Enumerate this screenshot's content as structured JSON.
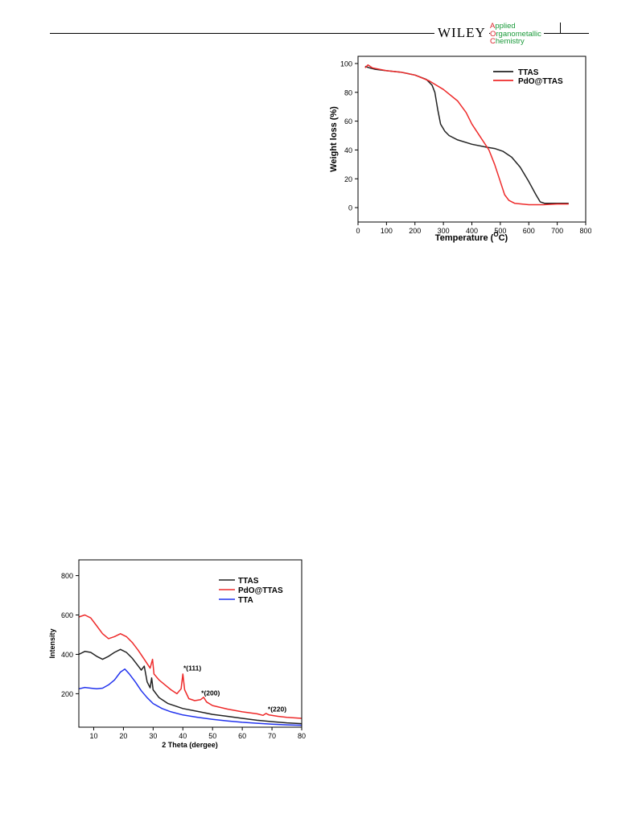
{
  "header": {
    "publisher": "WILEY",
    "journal_lines": [
      {
        "cap": "A",
        "rest": "pplied"
      },
      {
        "cap": "O",
        "rest": "rganometallic"
      },
      {
        "cap": "C",
        "rest": "hemistry"
      }
    ]
  },
  "colors": {
    "black": "#222222",
    "red": "#ee2a2a",
    "blue": "#2233ee",
    "journal_green": "#1a9a3a",
    "journal_red": "#d8232a"
  },
  "chart_data": [
    {
      "type": "line",
      "xlabel": "Temperature (",
      "xlabel_sup": "O",
      "xlabel_tail": "C)",
      "ylabel": "Weight loss (%)",
      "xlim": [
        0,
        800
      ],
      "ylim": [
        -10,
        105
      ],
      "xticks": [
        0,
        100,
        200,
        300,
        400,
        500,
        600,
        700,
        800
      ],
      "yticks": [
        0,
        20,
        40,
        60,
        80,
        100
      ],
      "legend_position": "top-right",
      "series": [
        {
          "name": "TTAS",
          "color": "#222222",
          "points": [
            [
              25,
              98
            ],
            [
              40,
              97
            ],
            [
              60,
              96
            ],
            [
              100,
              95
            ],
            [
              150,
              94
            ],
            [
              200,
              92
            ],
            [
              240,
              89
            ],
            [
              260,
              85
            ],
            [
              270,
              80
            ],
            [
              280,
              68
            ],
            [
              290,
              58
            ],
            [
              305,
              53
            ],
            [
              320,
              50
            ],
            [
              350,
              47
            ],
            [
              400,
              44
            ],
            [
              450,
              42
            ],
            [
              480,
              41
            ],
            [
              510,
              39
            ],
            [
              540,
              35
            ],
            [
              570,
              28
            ],
            [
              600,
              18
            ],
            [
              625,
              9
            ],
            [
              640,
              4
            ],
            [
              655,
              3
            ],
            [
              700,
              3
            ],
            [
              740,
              3
            ]
          ]
        },
        {
          "name": "PdO@TTAS",
          "color": "#ee2a2a",
          "points": [
            [
              25,
              97
            ],
            [
              35,
              99
            ],
            [
              50,
              97
            ],
            [
              100,
              95
            ],
            [
              150,
              94
            ],
            [
              200,
              92
            ],
            [
              250,
              88
            ],
            [
              300,
              82
            ],
            [
              350,
              74
            ],
            [
              380,
              66
            ],
            [
              400,
              58
            ],
            [
              430,
              49
            ],
            [
              460,
              40
            ],
            [
              480,
              30
            ],
            [
              500,
              18
            ],
            [
              515,
              9
            ],
            [
              530,
              5
            ],
            [
              550,
              3
            ],
            [
              600,
              2
            ],
            [
              650,
              2
            ],
            [
              700,
              2.5
            ],
            [
              740,
              2.5
            ]
          ]
        }
      ]
    },
    {
      "type": "line",
      "xlabel": "2 Theta (dergee)",
      "ylabel": "Intensity",
      "xlim": [
        5,
        80
      ],
      "ylim": [
        30,
        880
      ],
      "xticks": [
        10,
        20,
        30,
        40,
        50,
        60,
        70,
        80
      ],
      "yticks": [
        200,
        400,
        600,
        800
      ],
      "legend_position": "top-right",
      "annotations": [
        {
          "text": "*(111)",
          "x": 40.2,
          "y": 318
        },
        {
          "text": "*(200)",
          "x": 46.2,
          "y": 192
        },
        {
          "text": "*(220)",
          "x": 68.6,
          "y": 110
        }
      ],
      "series": [
        {
          "name": "TTAS",
          "color": "#222222",
          "points": [
            [
              5,
              400
            ],
            [
              7,
              415
            ],
            [
              9,
              410
            ],
            [
              11,
              390
            ],
            [
              13,
              375
            ],
            [
              15,
              390
            ],
            [
              17,
              410
            ],
            [
              19,
              425
            ],
            [
              21,
              410
            ],
            [
              23,
              380
            ],
            [
              25,
              340
            ],
            [
              26,
              320
            ],
            [
              27,
              340
            ],
            [
              28,
              260
            ],
            [
              29,
              230
            ],
            [
              29.5,
              280
            ],
            [
              30,
              220
            ],
            [
              32,
              180
            ],
            [
              35,
              150
            ],
            [
              38,
              135
            ],
            [
              40,
              125
            ],
            [
              45,
              110
            ],
            [
              50,
              95
            ],
            [
              55,
              85
            ],
            [
              60,
              75
            ],
            [
              65,
              65
            ],
            [
              70,
              58
            ],
            [
              75,
              52
            ],
            [
              80,
              48
            ]
          ]
        },
        {
          "name": "PdO@TTAS",
          "color": "#ee2a2a",
          "points": [
            [
              5,
              590
            ],
            [
              7,
              600
            ],
            [
              9,
              585
            ],
            [
              11,
              545
            ],
            [
              13,
              505
            ],
            [
              15,
              480
            ],
            [
              17,
              490
            ],
            [
              19,
              505
            ],
            [
              21,
              490
            ],
            [
              23,
              460
            ],
            [
              25,
              420
            ],
            [
              27,
              375
            ],
            [
              29,
              330
            ],
            [
              29.8,
              375
            ],
            [
              30.3,
              300
            ],
            [
              32,
              270
            ],
            [
              34,
              245
            ],
            [
              36,
              220
            ],
            [
              38,
              200
            ],
            [
              39.4,
              225
            ],
            [
              40,
              300
            ],
            [
              40.6,
              220
            ],
            [
              42,
              175
            ],
            [
              44,
              165
            ],
            [
              46,
              170
            ],
            [
              47,
              182
            ],
            [
              48,
              158
            ],
            [
              50,
              140
            ],
            [
              55,
              122
            ],
            [
              60,
              108
            ],
            [
              65,
              98
            ],
            [
              67,
              90
            ],
            [
              68,
              100
            ],
            [
              69,
              92
            ],
            [
              72,
              85
            ],
            [
              75,
              80
            ],
            [
              80,
              75
            ]
          ]
        },
        {
          "name": "TTA",
          "color": "#2233ee",
          "points": [
            [
              5,
              225
            ],
            [
              7,
              232
            ],
            [
              9,
              228
            ],
            [
              11,
              225
            ],
            [
              13,
              228
            ],
            [
              15,
              245
            ],
            [
              17,
              270
            ],
            [
              19,
              310
            ],
            [
              20.5,
              325
            ],
            [
              22,
              300
            ],
            [
              24,
              260
            ],
            [
              26,
              215
            ],
            [
              28,
              180
            ],
            [
              30,
              150
            ],
            [
              33,
              125
            ],
            [
              36,
              108
            ],
            [
              40,
              92
            ],
            [
              45,
              80
            ],
            [
              50,
              70
            ],
            [
              55,
              62
            ],
            [
              60,
              55
            ],
            [
              65,
              50
            ],
            [
              70,
              45
            ],
            [
              75,
              42
            ],
            [
              80,
              40
            ]
          ]
        }
      ]
    }
  ]
}
